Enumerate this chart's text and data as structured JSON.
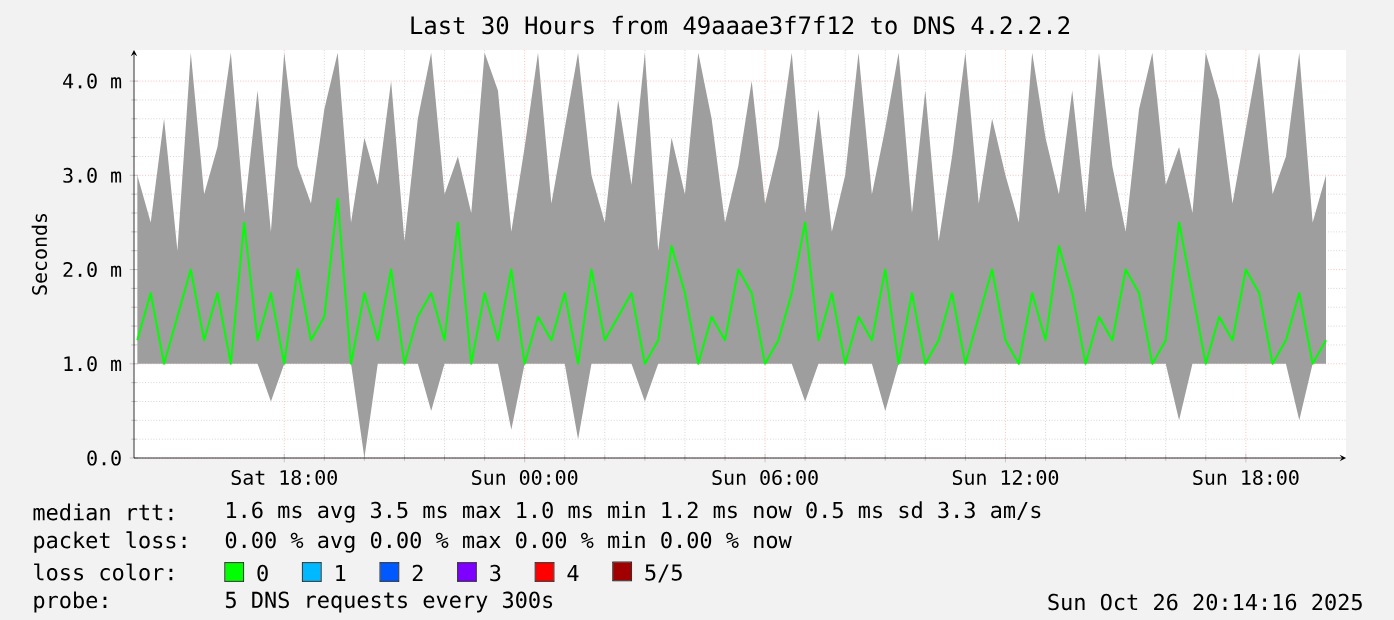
{
  "chart_data": {
    "type": "line",
    "title": "Last 30 Hours from 49aaae3f7f12 to DNS 4.2.2.2",
    "ylabel": "Seconds",
    "legend_title": "loss color:",
    "legend": "bottom",
    "grid": true,
    "xlim": [
      "2025-10-25T14:15",
      "2025-10-26T20:30"
    ],
    "ylim": [
      0,
      4.33
    ],
    "xticks": [
      {
        "value": "2025-10-25T18:00",
        "label": "Sat 18:00"
      },
      {
        "value": "2025-10-26T00:00",
        "label": "Sun 00:00"
      },
      {
        "value": "2025-10-26T06:00",
        "label": "Sun 06:00"
      },
      {
        "value": "2025-10-26T12:00",
        "label": "Sun 12:00"
      },
      {
        "value": "2025-10-26T18:00",
        "label": "Sun 18:00"
      }
    ],
    "yticks": [
      {
        "value": 0,
        "label": "0.0"
      },
      {
        "value": 1,
        "label": "1.0 m"
      },
      {
        "value": 2,
        "label": "2.0 m"
      },
      {
        "value": 3,
        "label": "3.0 m"
      },
      {
        "value": 4,
        "label": "4.0 m"
      }
    ],
    "x": [
      "2025-10-25T14:20",
      "2025-10-25T14:40",
      "2025-10-25T15:00",
      "2025-10-25T15:20",
      "2025-10-25T15:40",
      "2025-10-25T16:00",
      "2025-10-25T16:20",
      "2025-10-25T16:40",
      "2025-10-25T17:00",
      "2025-10-25T17:20",
      "2025-10-25T17:40",
      "2025-10-25T18:00",
      "2025-10-25T18:20",
      "2025-10-25T18:40",
      "2025-10-25T19:00",
      "2025-10-25T19:20",
      "2025-10-25T19:40",
      "2025-10-25T20:00",
      "2025-10-25T20:20",
      "2025-10-25T20:40",
      "2025-10-25T21:00",
      "2025-10-25T21:20",
      "2025-10-25T21:40",
      "2025-10-25T22:00",
      "2025-10-25T22:20",
      "2025-10-25T22:40",
      "2025-10-25T23:00",
      "2025-10-25T23:20",
      "2025-10-25T23:40",
      "2025-10-26T00:00",
      "2025-10-26T00:20",
      "2025-10-26T00:40",
      "2025-10-26T01:00",
      "2025-10-26T01:20",
      "2025-10-26T01:40",
      "2025-10-26T02:00",
      "2025-10-26T02:20",
      "2025-10-26T02:40",
      "2025-10-26T03:00",
      "2025-10-26T03:20",
      "2025-10-26T03:40",
      "2025-10-26T04:00",
      "2025-10-26T04:20",
      "2025-10-26T04:40",
      "2025-10-26T05:00",
      "2025-10-26T05:20",
      "2025-10-26T05:40",
      "2025-10-26T06:00",
      "2025-10-26T06:20",
      "2025-10-26T06:40",
      "2025-10-26T07:00",
      "2025-10-26T07:20",
      "2025-10-26T07:40",
      "2025-10-26T08:00",
      "2025-10-26T08:20",
      "2025-10-26T08:40",
      "2025-10-26T09:00",
      "2025-10-26T09:20",
      "2025-10-26T09:40",
      "2025-10-26T10:00",
      "2025-10-26T10:20",
      "2025-10-26T10:40",
      "2025-10-26T11:00",
      "2025-10-26T11:20",
      "2025-10-26T11:40",
      "2025-10-26T12:00",
      "2025-10-26T12:20",
      "2025-10-26T12:40",
      "2025-10-26T13:00",
      "2025-10-26T13:20",
      "2025-10-26T13:40",
      "2025-10-26T14:00",
      "2025-10-26T14:20",
      "2025-10-26T14:40",
      "2025-10-26T15:00",
      "2025-10-26T15:20",
      "2025-10-26T15:40",
      "2025-10-26T16:00",
      "2025-10-26T16:20",
      "2025-10-26T16:40",
      "2025-10-26T17:00",
      "2025-10-26T17:20",
      "2025-10-26T17:40",
      "2025-10-26T18:00",
      "2025-10-26T18:20",
      "2025-10-26T18:40",
      "2025-10-26T19:00",
      "2025-10-26T19:20",
      "2025-10-26T19:40",
      "2025-10-26T20:00"
    ],
    "series": [
      {
        "name": "0",
        "color": "#00ff00",
        "values": [
          1.25,
          1.75,
          1.0,
          1.5,
          2.0,
          1.25,
          1.75,
          1.0,
          2.5,
          1.25,
          1.75,
          1.0,
          2.0,
          1.25,
          1.5,
          2.75,
          1.0,
          1.75,
          1.25,
          2.0,
          1.0,
          1.5,
          1.75,
          1.25,
          2.5,
          1.0,
          1.75,
          1.25,
          2.0,
          1.0,
          1.5,
          1.25,
          1.75,
          1.0,
          2.0,
          1.25,
          1.5,
          1.75,
          1.0,
          1.25,
          2.25,
          1.75,
          1.0,
          1.5,
          1.25,
          2.0,
          1.75,
          1.0,
          1.25,
          1.75,
          2.5,
          1.25,
          1.75,
          1.0,
          1.5,
          1.25,
          2.0,
          1.0,
          1.75,
          1.0,
          1.25,
          1.75,
          1.0,
          1.5,
          2.0,
          1.25,
          1.0,
          1.75,
          1.25,
          2.25,
          1.75,
          1.0,
          1.5,
          1.25,
          2.0,
          1.75,
          1.0,
          1.25,
          2.5,
          1.75,
          1.0,
          1.5,
          1.25,
          2.0,
          1.75,
          1.0,
          1.25,
          1.75,
          1.0,
          1.25
        ],
        "lower": [
          1.0,
          1.0,
          1.0,
          1.0,
          1.0,
          1.0,
          1.0,
          1.0,
          1.0,
          1.0,
          0.6,
          1.0,
          1.0,
          1.0,
          1.0,
          1.0,
          1.0,
          0.0,
          1.0,
          1.0,
          1.0,
          1.0,
          0.5,
          1.0,
          1.0,
          1.0,
          1.0,
          1.0,
          0.3,
          1.0,
          1.0,
          1.0,
          1.0,
          0.2,
          1.0,
          1.0,
          1.0,
          1.0,
          0.6,
          1.0,
          1.0,
          1.0,
          1.0,
          1.0,
          1.0,
          1.0,
          1.0,
          1.0,
          1.0,
          1.0,
          0.6,
          1.0,
          1.0,
          1.0,
          1.0,
          1.0,
          0.5,
          1.0,
          1.0,
          1.0,
          1.0,
          1.0,
          1.0,
          1.0,
          1.0,
          1.0,
          1.0,
          1.0,
          1.0,
          1.0,
          1.0,
          1.0,
          1.0,
          1.0,
          1.0,
          1.0,
          1.0,
          1.0,
          0.4,
          1.0,
          1.0,
          1.0,
          1.0,
          1.0,
          1.0,
          1.0,
          1.0,
          0.4,
          1.0,
          1.0
        ],
        "upper": [
          3.0,
          2.5,
          3.6,
          2.2,
          4.3,
          2.8,
          3.3,
          4.3,
          2.6,
          3.9,
          2.4,
          4.3,
          3.1,
          2.7,
          3.7,
          4.3,
          2.5,
          3.4,
          2.9,
          4.0,
          2.3,
          3.6,
          4.3,
          2.8,
          3.2,
          2.6,
          4.3,
          3.9,
          2.4,
          3.3,
          4.3,
          2.7,
          3.5,
          4.3,
          3.0,
          2.5,
          3.8,
          2.9,
          4.3,
          2.2,
          3.4,
          2.8,
          4.3,
          3.6,
          2.5,
          3.1,
          4.0,
          2.7,
          3.3,
          4.3,
          2.6,
          3.7,
          2.4,
          3.0,
          4.3,
          2.8,
          3.5,
          4.3,
          2.6,
          3.9,
          2.3,
          3.2,
          4.3,
          2.7,
          3.6,
          3.0,
          2.5,
          4.3,
          3.4,
          2.8,
          3.9,
          2.6,
          4.3,
          3.1,
          2.4,
          3.7,
          4.3,
          2.9,
          3.3,
          2.6,
          4.3,
          3.8,
          2.7,
          3.5,
          4.3,
          2.8,
          3.2,
          4.3,
          2.5,
          3.0
        ]
      },
      {
        "name": "1",
        "color": "#00b8ff",
        "values": [
          null,
          null,
          null,
          null,
          null,
          null,
          null,
          null,
          null,
          null,
          null,
          null,
          null,
          null,
          null,
          null,
          null,
          null,
          null,
          null,
          null,
          null,
          null,
          null,
          null,
          null,
          null,
          null,
          null,
          null,
          null,
          null,
          null,
          null,
          null,
          null,
          null,
          null,
          null,
          null,
          null,
          null,
          null,
          null,
          null,
          null,
          null,
          null,
          null,
          null,
          null,
          null,
          null,
          null,
          null,
          null,
          null,
          null,
          null,
          null,
          null,
          null,
          null,
          null,
          null,
          null,
          null,
          null,
          null,
          null,
          null,
          null,
          null,
          null,
          null,
          null,
          null,
          null,
          null,
          null,
          null,
          null,
          null,
          null,
          null,
          null,
          null,
          null,
          null,
          null
        ]
      },
      {
        "name": "2",
        "color": "#0059ff",
        "values": [
          null,
          null,
          null,
          null,
          null,
          null,
          null,
          null,
          null,
          null,
          null,
          null,
          null,
          null,
          null,
          null,
          null,
          null,
          null,
          null,
          null,
          null,
          null,
          null,
          null,
          null,
          null,
          null,
          null,
          null,
          null,
          null,
          null,
          null,
          null,
          null,
          null,
          null,
          null,
          null,
          null,
          null,
          null,
          null,
          null,
          null,
          null,
          null,
          null,
          null,
          null,
          null,
          null,
          null,
          null,
          null,
          null,
          null,
          null,
          null,
          null,
          null,
          null,
          null,
          null,
          null,
          null,
          null,
          null,
          null,
          null,
          null,
          null,
          null,
          null,
          null,
          null,
          null,
          null,
          null,
          null,
          null,
          null,
          null,
          null,
          null,
          null,
          null,
          null,
          null
        ]
      },
      {
        "name": "3",
        "color": "#7e00ff",
        "values": [
          null,
          null,
          null,
          null,
          null,
          null,
          null,
          null,
          null,
          null,
          null,
          null,
          null,
          null,
          null,
          null,
          null,
          null,
          null,
          null,
          null,
          null,
          null,
          null,
          null,
          null,
          null,
          null,
          null,
          null,
          null,
          null,
          null,
          null,
          null,
          null,
          null,
          null,
          null,
          null,
          null,
          null,
          null,
          null,
          null,
          null,
          null,
          null,
          null,
          null,
          null,
          null,
          null,
          null,
          null,
          null,
          null,
          null,
          null,
          null,
          null,
          null,
          null,
          null,
          null,
          null,
          null,
          null,
          null,
          null,
          null,
          null,
          null,
          null,
          null,
          null,
          null,
          null,
          null,
          null,
          null,
          null,
          null,
          null,
          null,
          null,
          null,
          null,
          null,
          null
        ]
      },
      {
        "name": "4",
        "color": "#ff0000",
        "values": [
          null,
          null,
          null,
          null,
          null,
          null,
          null,
          null,
          null,
          null,
          null,
          null,
          null,
          null,
          null,
          null,
          null,
          null,
          null,
          null,
          null,
          null,
          null,
          null,
          null,
          null,
          null,
          null,
          null,
          null,
          null,
          null,
          null,
          null,
          null,
          null,
          null,
          null,
          null,
          null,
          null,
          null,
          null,
          null,
          null,
          null,
          null,
          null,
          null,
          null,
          null,
          null,
          null,
          null,
          null,
          null,
          null,
          null,
          null,
          null,
          null,
          null,
          null,
          null,
          null,
          null,
          null,
          null,
          null,
          null,
          null,
          null,
          null,
          null,
          null,
          null,
          null,
          null,
          null,
          null,
          null,
          null,
          null,
          null,
          null,
          null,
          null,
          null,
          null,
          null
        ]
      },
      {
        "name": "5/5",
        "color": "#a00000",
        "values": [
          null,
          null,
          null,
          null,
          null,
          null,
          null,
          null,
          null,
          null,
          null,
          null,
          null,
          null,
          null,
          null,
          null,
          null,
          null,
          null,
          null,
          null,
          null,
          null,
          null,
          null,
          null,
          null,
          null,
          null,
          null,
          null,
          null,
          null,
          null,
          null,
          null,
          null,
          null,
          null,
          null,
          null,
          null,
          null,
          null,
          null,
          null,
          null,
          null,
          null,
          null,
          null,
          null,
          null,
          null,
          null,
          null,
          null,
          null,
          null,
          null,
          null,
          null,
          null,
          null,
          null,
          null,
          null,
          null,
          null,
          null,
          null,
          null,
          null,
          null,
          null,
          null,
          null,
          null,
          null,
          null,
          null,
          null,
          null,
          null,
          null,
          null,
          null,
          null,
          null
        ]
      }
    ],
    "annotations": [
      "median rtt:",
      "1.6 ms avg  3.5 ms max  1.0 ms min  1.2 ms now  0.5 ms sd  3.3 am/s",
      "packet loss:",
      "0.00 % avg  0.00 % max  0.00 % min  0.00 % now",
      "probe:",
      "5 DNS requests every 300s",
      "Sun Oct 26 20:14:16 2025"
    ]
  }
}
